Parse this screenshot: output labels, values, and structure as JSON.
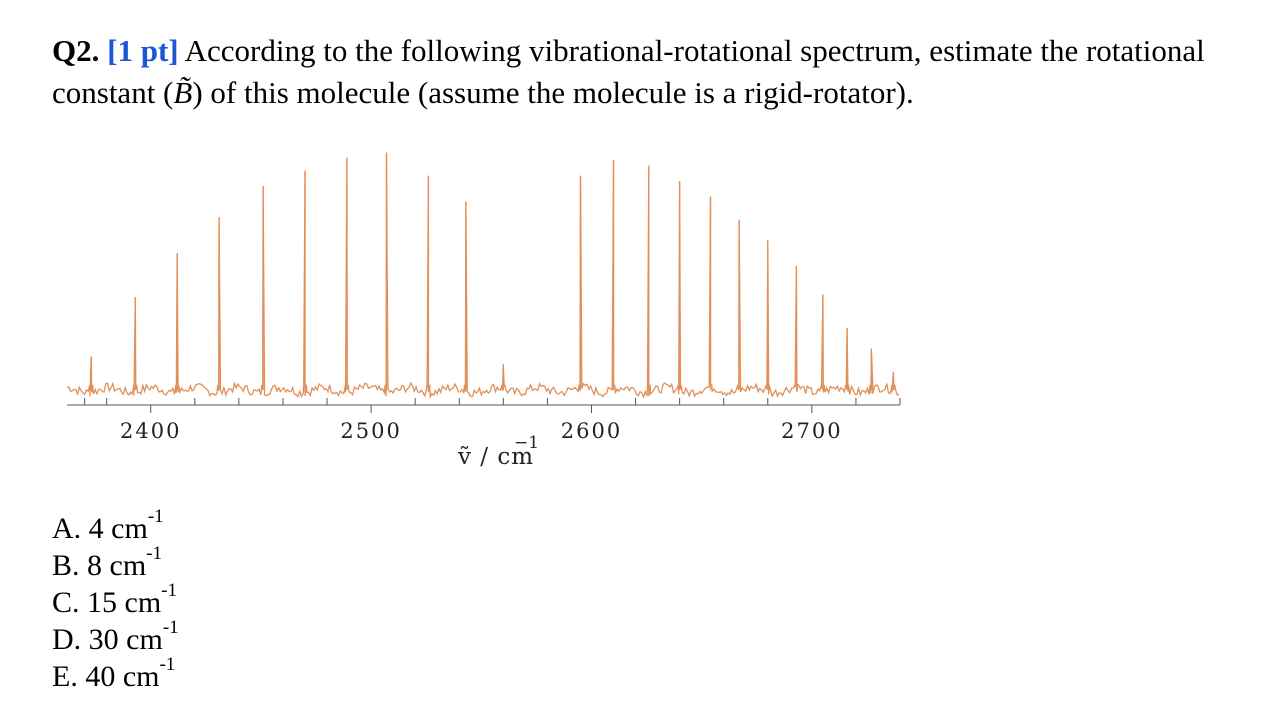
{
  "question": {
    "number": "Q2.",
    "points": "[1 pt]",
    "text_before_symbol": "According to the following vibrational-rotational spectrum, estimate the rotational constant (",
    "symbol": "B̃",
    "text_after_symbol": ") of this molecule (assume the molecule is a rigid-rotator)."
  },
  "chart_data": {
    "type": "line",
    "title": "",
    "xlabel": "ṽ / cm",
    "xlabel_superscript": "−1",
    "ylabel": "",
    "xlim": [
      2362,
      2740
    ],
    "ylim": [
      0,
      1
    ],
    "xticks": [
      2400,
      2500,
      2600,
      2700
    ],
    "xtick_labels": [
      "2400",
      "2500",
      "2600",
      "2700"
    ],
    "grid": false,
    "line_color": "#e0905a",
    "baseline": 0.07,
    "peaks": {
      "x": [
        2373,
        2393,
        2412,
        2431,
        2451,
        2470,
        2489,
        2507,
        2526,
        2543,
        2560,
        2595,
        2610,
        2626,
        2640,
        2654,
        2667,
        2680,
        2693,
        2705,
        2716,
        2727,
        2737
      ],
      "y": [
        0.2,
        0.43,
        0.6,
        0.74,
        0.86,
        0.92,
        0.97,
        0.99,
        0.9,
        0.8,
        0.17,
        0.9,
        0.96,
        0.94,
        0.88,
        0.82,
        0.73,
        0.65,
        0.55,
        0.44,
        0.31,
        0.23,
        0.14
      ]
    }
  },
  "options": [
    {
      "label": "A.",
      "value": "4 cm",
      "exp": "-1"
    },
    {
      "label": "B.",
      "value": "8 cm",
      "exp": "-1"
    },
    {
      "label": "C.",
      "value": "15 cm",
      "exp": "-1"
    },
    {
      "label": "D.",
      "value": "30 cm",
      "exp": "-1"
    },
    {
      "label": "E.",
      "value": "40 cm",
      "exp": "-1"
    }
  ]
}
